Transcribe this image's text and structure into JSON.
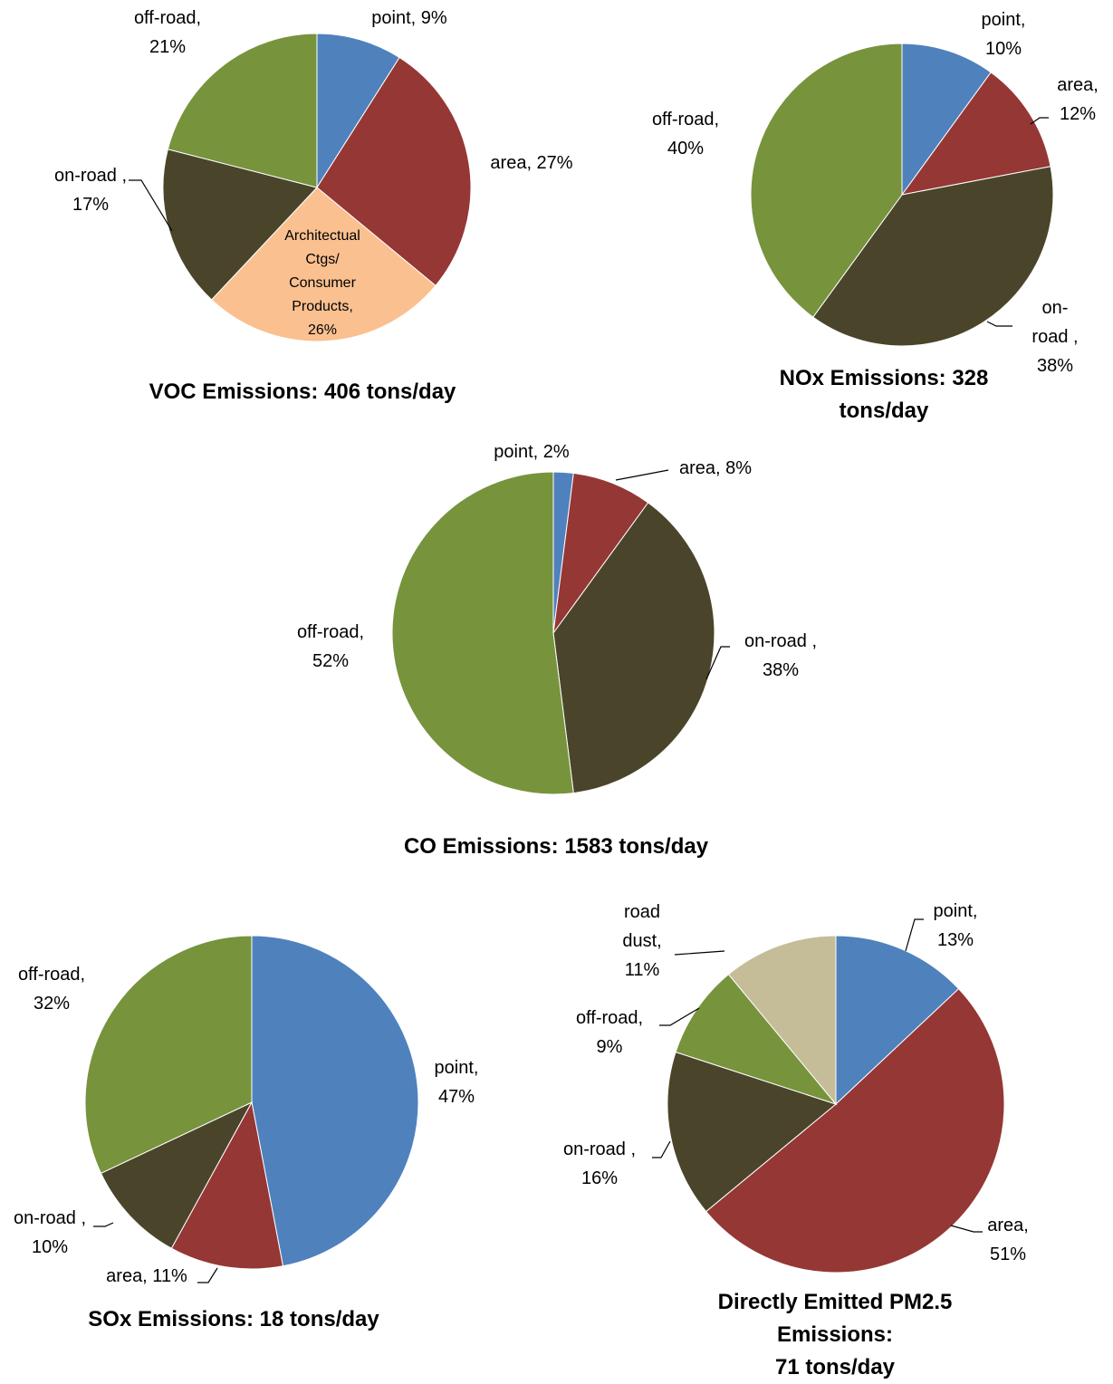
{
  "chart_data": [
    {
      "type": "pie",
      "title": "VOC Emissions:  406 tons/day",
      "values": [
        9,
        27,
        26,
        17,
        21
      ],
      "value_labels": [
        "point, 9%",
        "area, 27%",
        "Architectual\nCtgs/\nConsumer\nProducts,\n26%",
        "on-road ,\n17%",
        "off-road,\n21%"
      ],
      "colors": [
        "#4f81bd",
        "#953735",
        "#fac090",
        "#4a452a",
        "#77933c"
      ]
    },
    {
      "type": "pie",
      "title": "NOx Emissions:  328 tons/day",
      "values": [
        10,
        12,
        38,
        40
      ],
      "value_labels": [
        "point,\n10%",
        "area,\n12%",
        "on-road ,\n38%",
        "off-road,\n40%"
      ],
      "colors": [
        "#4f81bd",
        "#953735",
        "#4a452a",
        "#77933c"
      ]
    },
    {
      "type": "pie",
      "title": "CO Emissions:  1583 tons/day",
      "values": [
        2,
        8,
        38,
        52
      ],
      "value_labels": [
        "point, 2%",
        "area, 8%",
        "on-road ,\n38%",
        "off-road,\n52%"
      ],
      "colors": [
        "#4f81bd",
        "#953735",
        "#4a452a",
        "#77933c"
      ]
    },
    {
      "type": "pie",
      "title": "SOx Emissions:  18 tons/day",
      "values": [
        47,
        11,
        10,
        32
      ],
      "value_labels": [
        "point,\n47%",
        "area, 11%",
        "on-road ,\n10%",
        "off-road,\n32%"
      ],
      "colors": [
        "#4f81bd",
        "#953735",
        "#4a452a",
        "#77933c"
      ]
    },
    {
      "type": "pie",
      "title": "Directly Emitted PM2.5 Emissions:\n71 tons/day",
      "values": [
        13,
        51,
        16,
        9,
        11
      ],
      "value_labels": [
        "point,\n13%",
        "area,\n51%",
        "on-road ,\n16%",
        "off-road,\n9%",
        "road\ndust,\n11%"
      ],
      "colors": [
        "#4f81bd",
        "#953735",
        "#4a452a",
        "#77933c",
        "#c4bd97"
      ]
    }
  ]
}
